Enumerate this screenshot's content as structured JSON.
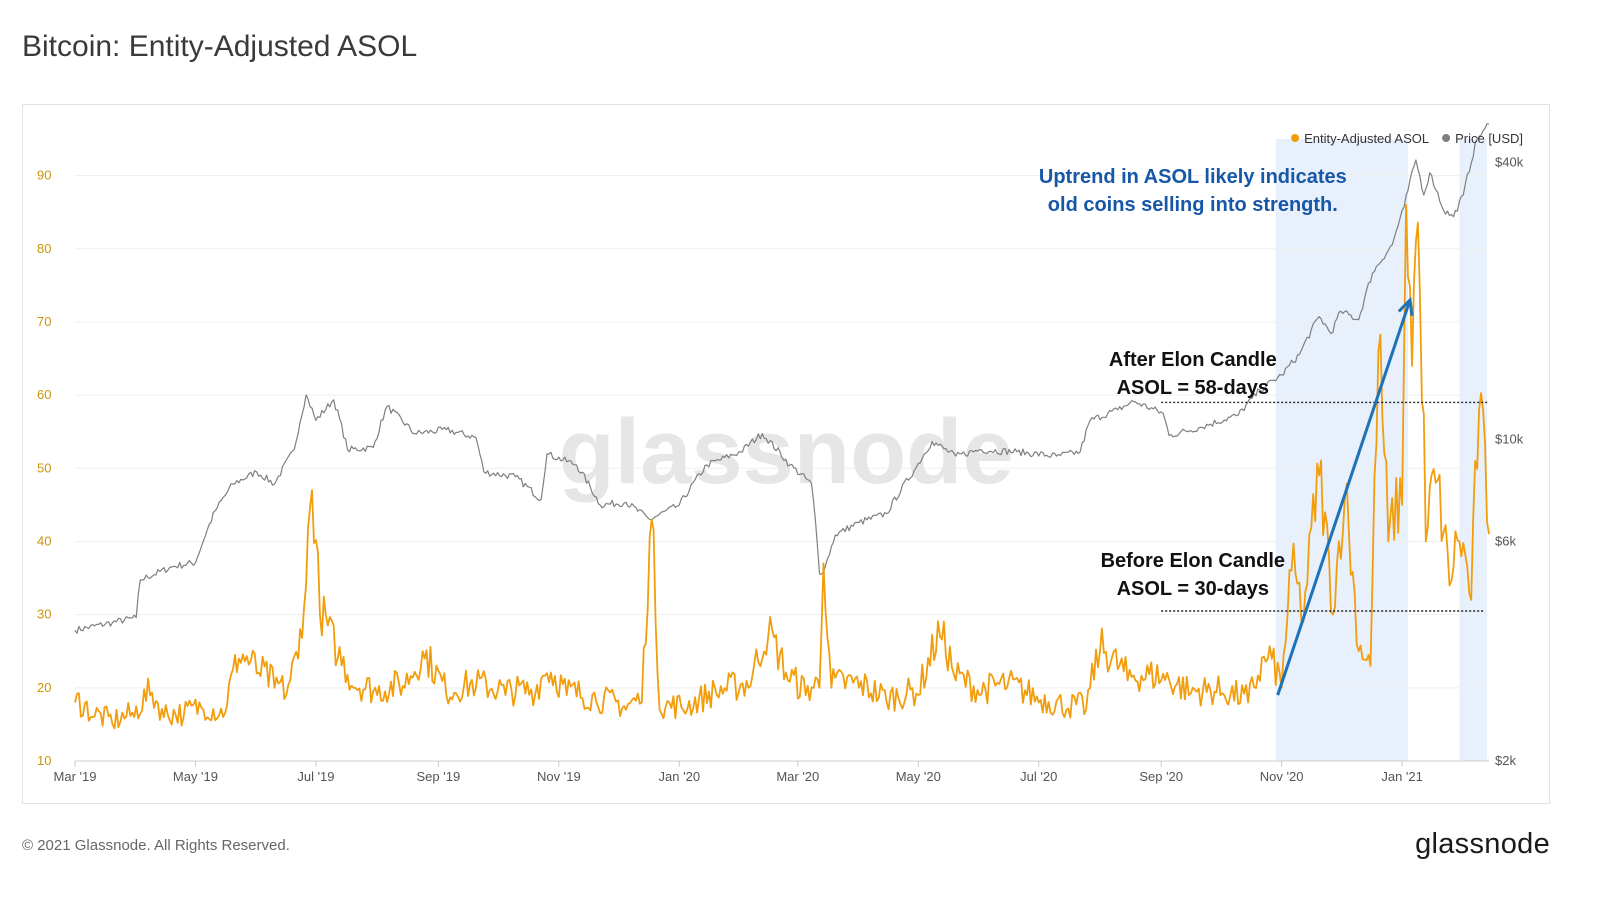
{
  "page": {
    "title": "Bitcoin: Entity-Adjusted ASOL",
    "footer": "© 2021 Glassnode. All Rights Reserved.",
    "brand": "glassnode",
    "watermark": "glassnode"
  },
  "chart_data": {
    "type": "line",
    "x_axis": {
      "type": "date",
      "range": [
        "2019-03-01",
        "2021-02-14"
      ],
      "ticks": [
        {
          "date": "2019-03-01",
          "label": "Mar '19"
        },
        {
          "date": "2019-05-01",
          "label": "May '19"
        },
        {
          "date": "2019-07-01",
          "label": "Jul '19"
        },
        {
          "date": "2019-09-01",
          "label": "Sep '19"
        },
        {
          "date": "2019-11-01",
          "label": "Nov '19"
        },
        {
          "date": "2020-01-01",
          "label": "Jan '20"
        },
        {
          "date": "2020-03-01",
          "label": "Mar '20"
        },
        {
          "date": "2020-05-01",
          "label": "May '20"
        },
        {
          "date": "2020-07-01",
          "label": "Jul '20"
        },
        {
          "date": "2020-09-01",
          "label": "Sep '20"
        },
        {
          "date": "2020-11-01",
          "label": "Nov '20"
        },
        {
          "date": "2021-01-01",
          "label": "Jan '21"
        }
      ]
    },
    "y_left": {
      "range": [
        10,
        95
      ],
      "ticks": [
        10,
        20,
        30,
        40,
        50,
        60,
        70,
        80,
        90
      ],
      "color": "#c8960c",
      "grid": true
    },
    "y_right": {
      "scale": "log",
      "unit": "USD",
      "range": [
        2000,
        45000
      ],
      "ticks": [
        {
          "value": 2000,
          "label": "$2k"
        },
        {
          "value": 6000,
          "label": "$6k"
        },
        {
          "value": 10000,
          "label": "$10k"
        },
        {
          "value": 40000,
          "label": "$40k"
        }
      ]
    },
    "legend": {
      "position": "top-right",
      "items": [
        {
          "label": "Entity-Adjusted ASOL",
          "color": "#f29d0c"
        },
        {
          "label": "Price [USD]",
          "color": "#7f7f7f"
        }
      ]
    },
    "series": [
      {
        "name": "Entity-Adjusted ASOL",
        "axis": "left",
        "color": "#f29d0c",
        "points": [
          [
            "2019-03-01",
            18
          ],
          [
            "2019-03-10",
            16
          ],
          [
            "2019-03-20",
            15
          ],
          [
            "2019-03-31",
            16
          ],
          [
            "2019-04-08",
            19
          ],
          [
            "2019-04-15",
            16
          ],
          [
            "2019-04-25",
            16
          ],
          [
            "2019-05-05",
            17
          ],
          [
            "2019-05-15",
            16
          ],
          [
            "2019-05-23",
            24
          ],
          [
            "2019-06-01",
            22
          ],
          [
            "2019-06-10",
            20
          ],
          [
            "2019-06-16",
            19
          ],
          [
            "2019-06-22",
            24
          ],
          [
            "2019-06-26",
            34
          ],
          [
            "2019-06-29",
            47
          ],
          [
            "2019-07-03",
            30
          ],
          [
            "2019-07-12",
            24
          ],
          [
            "2019-07-20",
            20
          ],
          [
            "2019-08-01",
            19
          ],
          [
            "2019-08-15",
            20
          ],
          [
            "2019-08-25",
            24
          ],
          [
            "2019-09-05",
            19
          ],
          [
            "2019-09-20",
            20
          ],
          [
            "2019-10-05",
            19
          ],
          [
            "2019-10-20",
            19
          ],
          [
            "2019-10-26",
            22
          ],
          [
            "2019-11-05",
            19
          ],
          [
            "2019-11-20",
            18
          ],
          [
            "2019-12-05",
            17
          ],
          [
            "2019-12-13",
            18
          ],
          [
            "2019-12-18",
            43
          ],
          [
            "2019-12-22",
            17
          ],
          [
            "2020-01-05",
            17
          ],
          [
            "2020-01-20",
            19
          ],
          [
            "2020-02-05",
            20
          ],
          [
            "2020-02-15",
            27
          ],
          [
            "2020-02-25",
            21
          ],
          [
            "2020-03-05",
            19
          ],
          [
            "2020-03-12",
            20
          ],
          [
            "2020-03-14",
            37
          ],
          [
            "2020-03-18",
            20
          ],
          [
            "2020-04-01",
            20
          ],
          [
            "2020-04-15",
            18
          ],
          [
            "2020-05-01",
            19
          ],
          [
            "2020-05-12",
            27
          ],
          [
            "2020-05-20",
            21
          ],
          [
            "2020-06-01",
            19
          ],
          [
            "2020-06-15",
            20
          ],
          [
            "2020-07-01",
            18
          ],
          [
            "2020-07-15",
            17
          ],
          [
            "2020-07-25",
            17
          ],
          [
            "2020-08-01",
            25
          ],
          [
            "2020-08-15",
            21
          ],
          [
            "2020-09-01",
            21
          ],
          [
            "2020-09-15",
            19
          ],
          [
            "2020-10-01",
            19
          ],
          [
            "2020-10-15",
            18
          ],
          [
            "2020-10-25",
            24
          ],
          [
            "2020-11-01",
            20
          ],
          [
            "2020-11-06",
            36
          ],
          [
            "2020-11-12",
            29
          ],
          [
            "2020-11-20",
            49
          ],
          [
            "2020-11-27",
            30
          ],
          [
            "2020-12-03",
            46
          ],
          [
            "2020-12-10",
            25
          ],
          [
            "2020-12-16",
            23
          ],
          [
            "2020-12-20",
            66
          ],
          [
            "2020-12-25",
            40
          ],
          [
            "2021-01-01",
            45
          ],
          [
            "2021-01-03",
            86
          ],
          [
            "2021-01-06",
            64
          ],
          [
            "2021-01-08",
            81
          ],
          [
            "2021-01-10",
            74
          ],
          [
            "2021-01-13",
            40
          ],
          [
            "2021-01-18",
            48
          ],
          [
            "2021-01-25",
            34
          ],
          [
            "2021-01-30",
            40
          ],
          [
            "2021-02-05",
            32
          ],
          [
            "2021-02-09",
            58
          ],
          [
            "2021-02-14",
            41
          ]
        ]
      },
      {
        "name": "Price [USD]",
        "axis": "right",
        "color": "#7f7f7f",
        "points": [
          [
            "2019-03-01",
            3850
          ],
          [
            "2019-03-20",
            4000
          ],
          [
            "2019-04-01",
            4100
          ],
          [
            "2019-04-03",
            4950
          ],
          [
            "2019-04-20",
            5300
          ],
          [
            "2019-05-01",
            5400
          ],
          [
            "2019-05-11",
            7000
          ],
          [
            "2019-05-20",
            8000
          ],
          [
            "2019-06-01",
            8500
          ],
          [
            "2019-06-10",
            8000
          ],
          [
            "2019-06-20",
            9500
          ],
          [
            "2019-06-26",
            12500
          ],
          [
            "2019-07-01",
            11000
          ],
          [
            "2019-07-10",
            12200
          ],
          [
            "2019-07-17",
            9500
          ],
          [
            "2019-07-30",
            9600
          ],
          [
            "2019-08-06",
            11800
          ],
          [
            "2019-08-20",
            10300
          ],
          [
            "2019-09-05",
            10500
          ],
          [
            "2019-09-20",
            10100
          ],
          [
            "2019-09-24",
            8500
          ],
          [
            "2019-10-10",
            8300
          ],
          [
            "2019-10-23",
            7400
          ],
          [
            "2019-10-26",
            9300
          ],
          [
            "2019-11-10",
            8800
          ],
          [
            "2019-11-22",
            7200
          ],
          [
            "2019-12-05",
            7300
          ],
          [
            "2019-12-17",
            6700
          ],
          [
            "2020-01-01",
            7200
          ],
          [
            "2020-01-15",
            8800
          ],
          [
            "2020-02-01",
            9400
          ],
          [
            "2020-02-12",
            10300
          ],
          [
            "2020-02-26",
            8800
          ],
          [
            "2020-03-08",
            8000
          ],
          [
            "2020-03-12",
            5100
          ],
          [
            "2020-03-15",
            5300
          ],
          [
            "2020-03-20",
            6200
          ],
          [
            "2020-04-01",
            6600
          ],
          [
            "2020-04-15",
            6900
          ],
          [
            "2020-04-30",
            8700
          ],
          [
            "2020-05-08",
            9900
          ],
          [
            "2020-05-20",
            9200
          ],
          [
            "2020-06-01",
            9500
          ],
          [
            "2020-06-20",
            9400
          ],
          [
            "2020-07-10",
            9200
          ],
          [
            "2020-07-22",
            9400
          ],
          [
            "2020-07-27",
            11000
          ],
          [
            "2020-08-10",
            11600
          ],
          [
            "2020-08-18",
            12100
          ],
          [
            "2020-09-02",
            11400
          ],
          [
            "2020-09-05",
            10200
          ],
          [
            "2020-09-20",
            10600
          ],
          [
            "2020-10-10",
            11300
          ],
          [
            "2020-10-21",
            12800
          ],
          [
            "2020-11-01",
            13800
          ],
          [
            "2020-11-10",
            15300
          ],
          [
            "2020-11-20",
            18500
          ],
          [
            "2020-11-26",
            17000
          ],
          [
            "2020-12-01",
            19000
          ],
          [
            "2020-12-10",
            18200
          ],
          [
            "2020-12-17",
            23000
          ],
          [
            "2020-12-27",
            26500
          ],
          [
            "2021-01-02",
            32000
          ],
          [
            "2021-01-08",
            40500
          ],
          [
            "2021-01-12",
            34000
          ],
          [
            "2021-01-15",
            38000
          ],
          [
            "2021-01-22",
            31500
          ],
          [
            "2021-01-27",
            30500
          ],
          [
            "2021-02-01",
            34000
          ],
          [
            "2021-02-08",
            45000
          ],
          [
            "2021-02-12",
            47500
          ],
          [
            "2021-02-14",
            48500
          ]
        ]
      }
    ],
    "shaded_regions": [
      {
        "from": "2020-10-29",
        "to": "2021-01-04",
        "color": "#e8f0fc"
      },
      {
        "from": "2021-01-30",
        "to": "2021-02-13",
        "color": "#e8f0fc"
      }
    ],
    "reference_lines": [
      {
        "axis": "left",
        "value": 59,
        "from": "2020-09-01",
        "to": "2021-02-14",
        "style": "dotted"
      },
      {
        "axis": "left",
        "value": 30.5,
        "from": "2020-09-01",
        "to": "2021-02-11",
        "style": "dotted"
      }
    ],
    "trend_arrow": {
      "axis": "left",
      "from": [
        "2020-10-30",
        19
      ],
      "to": [
        "2021-01-05",
        73
      ],
      "color": "#1e73b8"
    },
    "annotations": [
      {
        "lines": [
          "Uptrend in ASOL likely indicates",
          "old coins selling into strength."
        ],
        "date": "2020-10-25",
        "value": 89,
        "color": "#1757a8"
      },
      {
        "lines": [
          "After Elon Candle",
          "ASOL = 58-days"
        ],
        "date": "2020-10-25",
        "value": 64,
        "color": "#111111"
      },
      {
        "lines": [
          "Before Elon Candle",
          "ASOL = 30-days"
        ],
        "date": "2020-10-25",
        "value": 36.5,
        "color": "#111111"
      }
    ]
  }
}
